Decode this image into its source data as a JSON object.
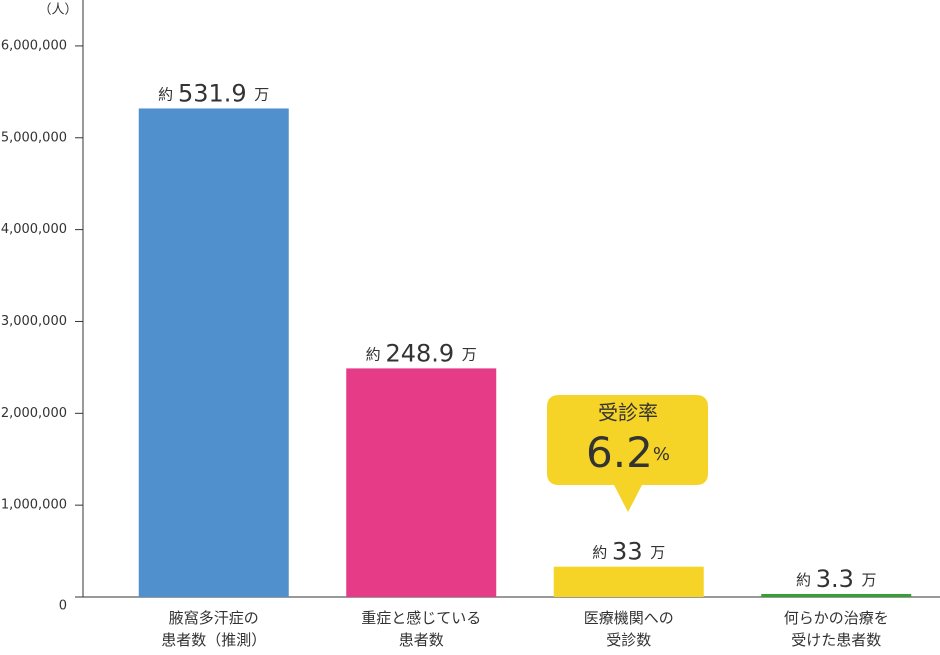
{
  "chart_data": {
    "type": "bar",
    "y_label": "（人）",
    "categories": [
      "腋窩多汗症の\n患者数（推測）",
      "重症と感じている\n患者数",
      "医療機関への\n受診数",
      "何らかの治療を\n受けた患者数"
    ],
    "values": [
      5319000,
      2489000,
      330000,
      33000
    ],
    "value_labels": [
      "約 531.9 万",
      "約 248.9 万",
      "約 33 万",
      "約 3.3 万"
    ],
    "colors": [
      "#5090cd",
      "#e63b87",
      "#f5d327",
      "#3a9d3a"
    ],
    "ylim": [
      0,
      6500000
    ],
    "yticks": [
      0,
      {
        "value": 1000000,
        "label": "1,000,000"
      },
      {
        "value": 2000000,
        "label": "2,000,000"
      },
      {
        "value": 3000000,
        "label": "3,000,000"
      },
      {
        "value": 4000000,
        "label": "4,000,000"
      },
      {
        "value": 5000000,
        "label": "5,000,000"
      },
      {
        "value": 6000000,
        "label": "6,000,000"
      }
    ],
    "callout": {
      "title": "受診率",
      "text": "6.2%"
    }
  }
}
